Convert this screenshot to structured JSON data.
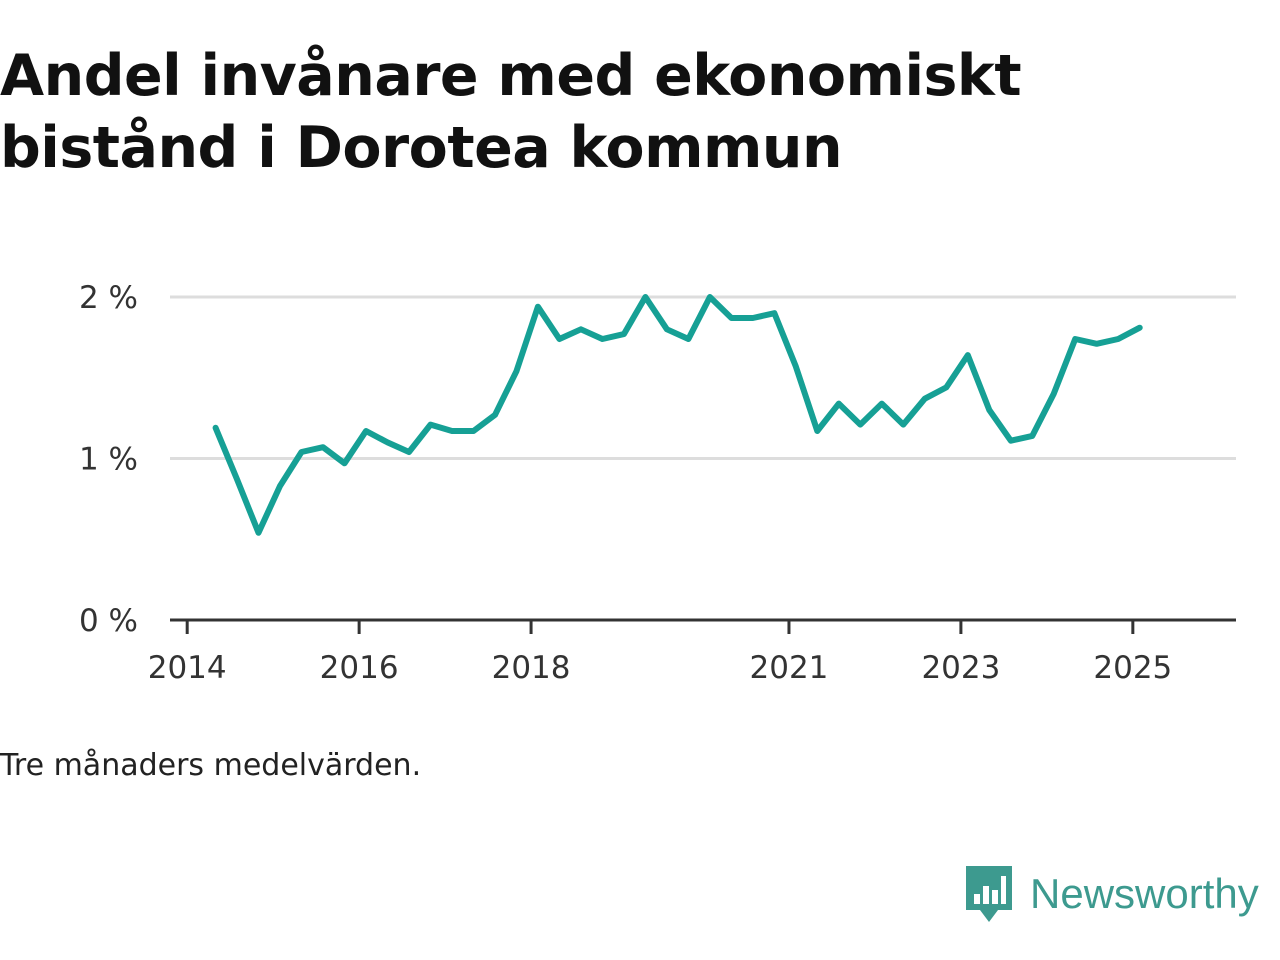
{
  "title": "Andel invånare med ekonomiskt bistånd i Dorotea kommun",
  "note": "Tre månaders medelvärden.",
  "logo_text": "Newsworthy",
  "colors": {
    "line": "#16a095",
    "grid": "#dddddd",
    "axis": "#333333",
    "logo": "#3d9a8f"
  },
  "chart_data": {
    "type": "line",
    "title": "Andel invånare med ekonomiskt bistånd i Dorotea kommun",
    "xlabel": "",
    "ylabel": "",
    "y_unit": "%",
    "ylim": [
      0,
      2
    ],
    "yticks": [
      {
        "value": 0,
        "label": "0 %"
      },
      {
        "value": 1,
        "label": "1 %"
      },
      {
        "value": 2,
        "label": "2 %"
      }
    ],
    "xticks": [
      {
        "value": 2014.0,
        "label": "2014"
      },
      {
        "value": 2016.0,
        "label": "2016"
      },
      {
        "value": 2018.0,
        "label": "2018"
      },
      {
        "value": 2021.0,
        "label": "2021"
      },
      {
        "value": 2023.0,
        "label": "2023"
      },
      {
        "value": 2025.0,
        "label": "2025"
      }
    ],
    "xlim": [
      2013.8,
      2026.2
    ],
    "grid": true,
    "legend": "none",
    "series": [
      {
        "x": [
          2014.33,
          2014.58,
          2014.83,
          2015.08,
          2015.33,
          2015.58,
          2015.83,
          2016.08,
          2016.33,
          2016.58,
          2016.83,
          2017.08,
          2017.33,
          2017.58,
          2017.83,
          2018.08,
          2018.33,
          2018.58,
          2018.83,
          2019.08,
          2019.33,
          2019.58,
          2019.83,
          2020.08,
          2020.33,
          2020.58,
          2020.83,
          2021.08,
          2021.33,
          2021.58,
          2021.83,
          2022.08,
          2022.33,
          2022.58,
          2022.83,
          2023.08,
          2023.33,
          2023.58,
          2023.83,
          2024.08,
          2024.33,
          2024.58,
          2024.83,
          2025.08
        ],
        "values": [
          1.19,
          0.87,
          0.54,
          0.83,
          1.04,
          1.07,
          0.97,
          1.17,
          1.1,
          1.04,
          1.21,
          1.17,
          1.17,
          1.27,
          1.54,
          1.94,
          1.74,
          1.8,
          1.74,
          1.77,
          2.0,
          1.8,
          1.74,
          2.0,
          1.87,
          1.87,
          1.9,
          1.57,
          1.17,
          1.34,
          1.21,
          1.34,
          1.21,
          1.37,
          1.44,
          1.64,
          1.3,
          1.11,
          1.14,
          1.4,
          1.74,
          1.71,
          1.74,
          1.81
        ]
      }
    ]
  }
}
